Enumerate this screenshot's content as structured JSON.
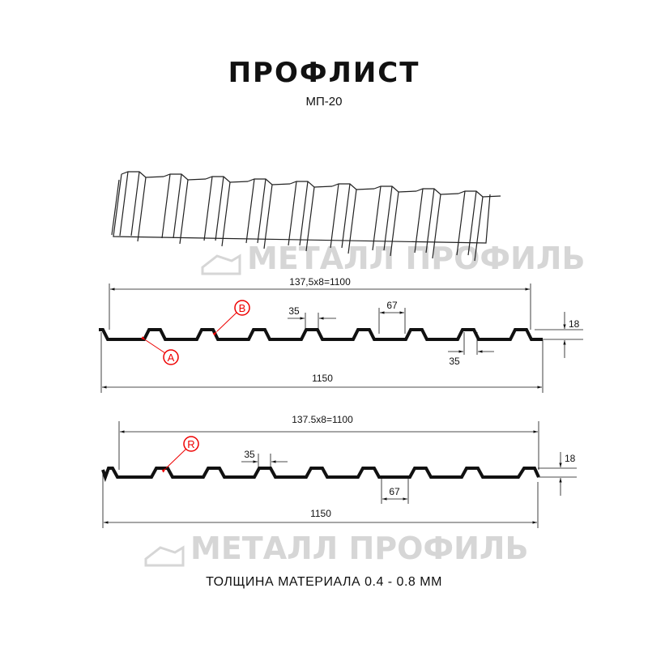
{
  "header": {
    "title": "ПРОФЛИСТ",
    "subtitle": "МП-20"
  },
  "watermark": "МЕТАЛЛ ПРОФИЛЬ",
  "profile_1": {
    "overall_pitch": "137,5x8=1100",
    "total_width": "1150",
    "rib_top": "35",
    "rib_pitch_gap": "67",
    "rib_bottom": "35",
    "height": "18",
    "label_a": "A",
    "label_b": "B"
  },
  "profile_2": {
    "overall_pitch": "137.5x8=1100",
    "total_width": "1150",
    "rib_top": "35",
    "trough": "67",
    "height": "18",
    "label_r": "R"
  },
  "footer": {
    "thickness": "ТОЛЩИНА МАТЕРИАЛА 0.4 - 0.8 ММ"
  },
  "colors": {
    "line": "#111111",
    "callout": "#e00000",
    "watermark": "#d6d6d6"
  }
}
